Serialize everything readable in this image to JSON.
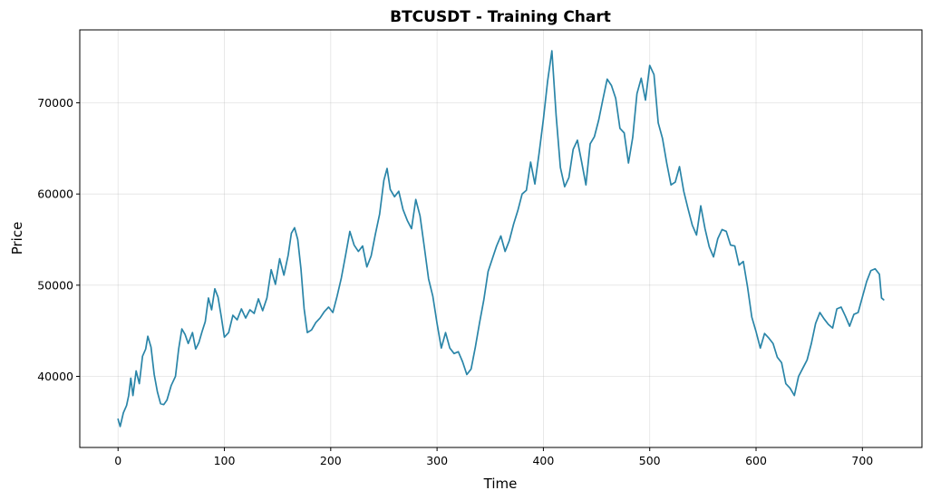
{
  "chart_data": {
    "type": "line",
    "title": "BTCUSDT - Training Chart",
    "xlabel": "Time",
    "ylabel": "Price",
    "xlim": [
      -36,
      756
    ],
    "ylim": [
      32200,
      78000
    ],
    "xticks": [
      0,
      100,
      200,
      300,
      400,
      500,
      600,
      700
    ],
    "yticks": [
      40000,
      50000,
      60000,
      70000
    ],
    "grid": true,
    "series": [
      {
        "color": "#2a85a8",
        "points": [
          [
            0,
            35300
          ],
          [
            2,
            34500
          ],
          [
            5,
            36000
          ],
          [
            8,
            36800
          ],
          [
            10,
            37900
          ],
          [
            12,
            39800
          ],
          [
            14,
            37900
          ],
          [
            17,
            40600
          ],
          [
            20,
            39200
          ],
          [
            23,
            42200
          ],
          [
            26,
            43000
          ],
          [
            28,
            44400
          ],
          [
            31,
            43200
          ],
          [
            34,
            40200
          ],
          [
            37,
            38300
          ],
          [
            40,
            37000
          ],
          [
            43,
            36900
          ],
          [
            46,
            37400
          ],
          [
            50,
            39000
          ],
          [
            54,
            40000
          ],
          [
            57,
            43000
          ],
          [
            60,
            45200
          ],
          [
            63,
            44600
          ],
          [
            66,
            43600
          ],
          [
            70,
            44800
          ],
          [
            73,
            43000
          ],
          [
            76,
            43700
          ],
          [
            79,
            44900
          ],
          [
            82,
            46000
          ],
          [
            85,
            48600
          ],
          [
            88,
            47300
          ],
          [
            91,
            49600
          ],
          [
            94,
            48700
          ],
          [
            97,
            46600
          ],
          [
            100,
            44300
          ],
          [
            104,
            44800
          ],
          [
            108,
            46700
          ],
          [
            112,
            46200
          ],
          [
            116,
            47400
          ],
          [
            120,
            46400
          ],
          [
            124,
            47300
          ],
          [
            128,
            46900
          ],
          [
            132,
            48500
          ],
          [
            136,
            47200
          ],
          [
            140,
            48600
          ],
          [
            144,
            51700
          ],
          [
            148,
            50100
          ],
          [
            152,
            52900
          ],
          [
            156,
            51100
          ],
          [
            160,
            53300
          ],
          [
            163,
            55700
          ],
          [
            166,
            56300
          ],
          [
            169,
            55000
          ],
          [
            172,
            51800
          ],
          [
            175,
            47400
          ],
          [
            178,
            44800
          ],
          [
            182,
            45100
          ],
          [
            186,
            45900
          ],
          [
            190,
            46400
          ],
          [
            194,
            47100
          ],
          [
            198,
            47600
          ],
          [
            202,
            47000
          ],
          [
            206,
            48800
          ],
          [
            210,
            50800
          ],
          [
            214,
            53300
          ],
          [
            218,
            55900
          ],
          [
            222,
            54400
          ],
          [
            226,
            53700
          ],
          [
            230,
            54300
          ],
          [
            234,
            52000
          ],
          [
            238,
            53200
          ],
          [
            242,
            55600
          ],
          [
            246,
            57800
          ],
          [
            250,
            61500
          ],
          [
            253,
            62800
          ],
          [
            256,
            60500
          ],
          [
            260,
            59700
          ],
          [
            264,
            60300
          ],
          [
            268,
            58300
          ],
          [
            272,
            57100
          ],
          [
            276,
            56200
          ],
          [
            280,
            59400
          ],
          [
            284,
            57600
          ],
          [
            288,
            54200
          ],
          [
            292,
            50700
          ],
          [
            296,
            48800
          ],
          [
            300,
            45800
          ],
          [
            304,
            43100
          ],
          [
            308,
            44800
          ],
          [
            312,
            43100
          ],
          [
            316,
            42500
          ],
          [
            320,
            42700
          ],
          [
            324,
            41600
          ],
          [
            328,
            40200
          ],
          [
            332,
            40800
          ],
          [
            336,
            43200
          ],
          [
            340,
            45900
          ],
          [
            344,
            48400
          ],
          [
            348,
            51500
          ],
          [
            352,
            52900
          ],
          [
            356,
            54300
          ],
          [
            360,
            55400
          ],
          [
            364,
            53700
          ],
          [
            368,
            54900
          ],
          [
            372,
            56700
          ],
          [
            376,
            58200
          ],
          [
            380,
            60000
          ],
          [
            384,
            60400
          ],
          [
            388,
            63500
          ],
          [
            392,
            61100
          ],
          [
            396,
            64500
          ],
          [
            400,
            68200
          ],
          [
            404,
            72400
          ],
          [
            408,
            75700
          ],
          [
            412,
            68600
          ],
          [
            416,
            62900
          ],
          [
            420,
            60800
          ],
          [
            424,
            61800
          ],
          [
            428,
            64900
          ],
          [
            432,
            65900
          ],
          [
            436,
            63500
          ],
          [
            440,
            61000
          ],
          [
            444,
            65500
          ],
          [
            448,
            66300
          ],
          [
            452,
            68100
          ],
          [
            456,
            70400
          ],
          [
            460,
            72600
          ],
          [
            464,
            71900
          ],
          [
            468,
            70500
          ],
          [
            472,
            67200
          ],
          [
            476,
            66700
          ],
          [
            480,
            63400
          ],
          [
            484,
            66200
          ],
          [
            488,
            71000
          ],
          [
            492,
            72700
          ],
          [
            496,
            70300
          ],
          [
            500,
            74100
          ],
          [
            504,
            73100
          ],
          [
            508,
            67800
          ],
          [
            512,
            66100
          ],
          [
            516,
            63400
          ],
          [
            520,
            61000
          ],
          [
            524,
            61300
          ],
          [
            528,
            63000
          ],
          [
            532,
            60300
          ],
          [
            536,
            58400
          ],
          [
            540,
            56600
          ],
          [
            544,
            55500
          ],
          [
            548,
            58700
          ],
          [
            552,
            56200
          ],
          [
            556,
            54200
          ],
          [
            560,
            53100
          ],
          [
            564,
            55100
          ],
          [
            568,
            56100
          ],
          [
            572,
            55900
          ],
          [
            576,
            54400
          ],
          [
            580,
            54300
          ],
          [
            584,
            52200
          ],
          [
            588,
            52600
          ],
          [
            592,
            49800
          ],
          [
            596,
            46500
          ],
          [
            600,
            44900
          ],
          [
            604,
            43100
          ],
          [
            608,
            44700
          ],
          [
            612,
            44200
          ],
          [
            616,
            43600
          ],
          [
            620,
            42100
          ],
          [
            624,
            41500
          ],
          [
            628,
            39200
          ],
          [
            632,
            38700
          ],
          [
            636,
            37900
          ],
          [
            640,
            40000
          ],
          [
            644,
            40900
          ],
          [
            648,
            41800
          ],
          [
            652,
            43600
          ],
          [
            656,
            45800
          ],
          [
            660,
            47000
          ],
          [
            664,
            46300
          ],
          [
            668,
            45700
          ],
          [
            672,
            45300
          ],
          [
            676,
            47400
          ],
          [
            680,
            47600
          ],
          [
            684,
            46600
          ],
          [
            688,
            45500
          ],
          [
            692,
            46800
          ],
          [
            696,
            47000
          ],
          [
            700,
            48700
          ],
          [
            704,
            50400
          ],
          [
            708,
            51600
          ],
          [
            712,
            51800
          ],
          [
            716,
            51200
          ],
          [
            718,
            48600
          ],
          [
            720,
            48400
          ]
        ]
      }
    ]
  }
}
